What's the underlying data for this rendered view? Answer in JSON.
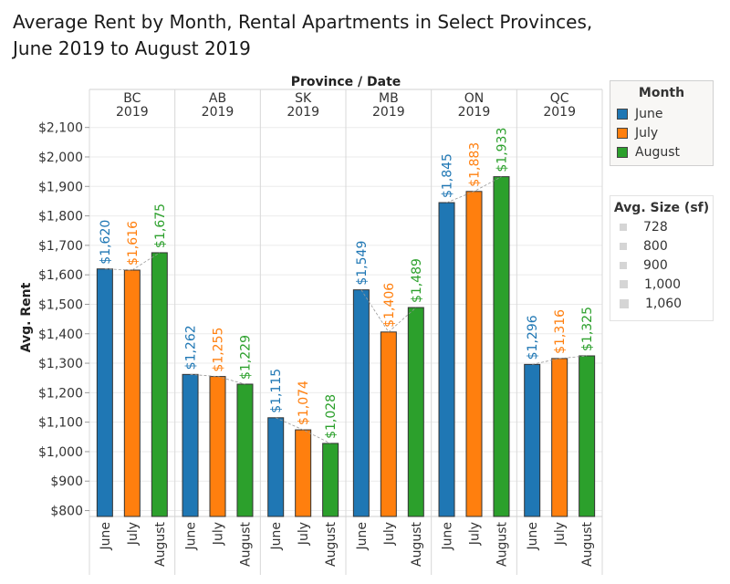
{
  "title": "Average Rent by Month, Rental Apartments in Select Provinces, June 2019 to August 2019",
  "chart_data": {
    "type": "bar",
    "header_label": "Province / Date",
    "ylabel": "Avg. Rent",
    "ylim": [
      780,
      2130
    ],
    "y_ticks": [
      {
        "value": 800,
        "label": "$800"
      },
      {
        "value": 900,
        "label": "$900"
      },
      {
        "value": 1000,
        "label": "$1,000"
      },
      {
        "value": 1100,
        "label": "$1,100"
      },
      {
        "value": 1200,
        "label": "$1,200"
      },
      {
        "value": 1300,
        "label": "$1,300"
      },
      {
        "value": 1400,
        "label": "$1,400"
      },
      {
        "value": 1500,
        "label": "$1,500"
      },
      {
        "value": 1600,
        "label": "$1,600"
      },
      {
        "value": 1700,
        "label": "$1,700"
      },
      {
        "value": 1800,
        "label": "$1,800"
      },
      {
        "value": 1900,
        "label": "$1,900"
      },
      {
        "value": 2000,
        "label": "$2,000"
      },
      {
        "value": 2100,
        "label": "$2,100"
      }
    ],
    "categories": [
      "June",
      "July",
      "August"
    ],
    "series_colors": {
      "June": "#1f77b4",
      "July": "#ff7f0e",
      "August": "#2ca02c"
    },
    "groups": [
      {
        "province": "BC",
        "year": "2019",
        "values": [
          1620,
          1616,
          1675
        ],
        "labels": [
          "$1,620",
          "$1,616",
          "$1,675"
        ]
      },
      {
        "province": "AB",
        "year": "2019",
        "values": [
          1262,
          1255,
          1229
        ],
        "labels": [
          "$1,262",
          "$1,255",
          "$1,229"
        ]
      },
      {
        "province": "SK",
        "year": "2019",
        "values": [
          1115,
          1074,
          1028
        ],
        "labels": [
          "$1,115",
          "$1,074",
          "$1,028"
        ]
      },
      {
        "province": "MB",
        "year": "2019",
        "values": [
          1549,
          1406,
          1489
        ],
        "labels": [
          "$1,549",
          "$1,406",
          "$1,489"
        ]
      },
      {
        "province": "ON",
        "year": "2019",
        "values": [
          1845,
          1883,
          1933
        ],
        "labels": [
          "$1,845",
          "$1,883",
          "$1,933"
        ]
      },
      {
        "province": "QC",
        "year": "2019",
        "values": [
          1296,
          1316,
          1325
        ],
        "labels": [
          "$1,296",
          "$1,316",
          "$1,325"
        ]
      }
    ]
  },
  "legend_month": {
    "title": "Month",
    "items": [
      {
        "label": "June",
        "color": "#1f77b4"
      },
      {
        "label": "July",
        "color": "#ff7f0e"
      },
      {
        "label": "August",
        "color": "#2ca02c"
      }
    ]
  },
  "legend_size": {
    "title": "Avg. Size (sf)",
    "items": [
      "728",
      "800",
      "900",
      "1,000",
      "1,060"
    ]
  }
}
